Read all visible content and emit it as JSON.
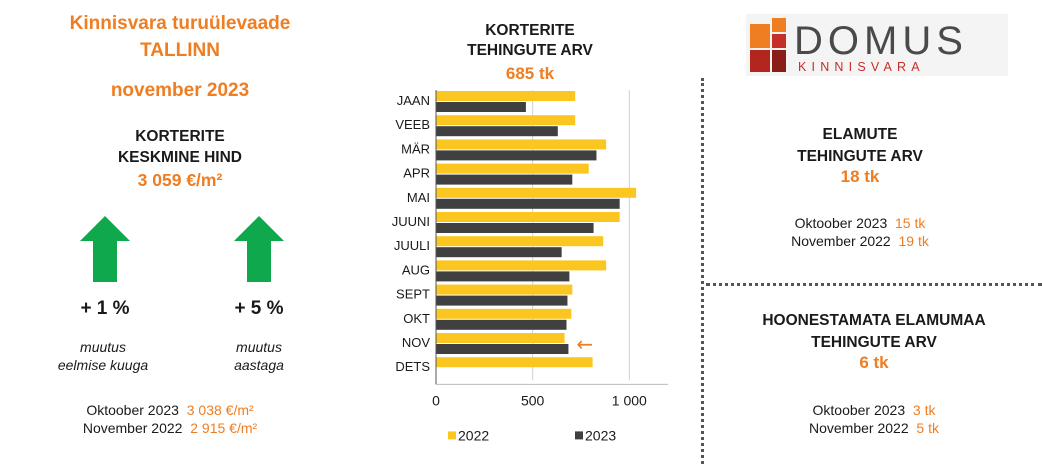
{
  "header": {
    "title_line1": "Kinnisvara turuülevaade",
    "title_line2": "TALLINN",
    "title_line3": "november 2023"
  },
  "avg_price": {
    "label_line1": "KORTERITE",
    "label_line2": "KESKMINE HIND",
    "value": "3 059 €/m²",
    "month_change": "+ 1 %",
    "month_desc_line1": "muutus",
    "month_desc_line2": "eelmise kuuga",
    "year_change": "+ 5 %",
    "year_desc_line1": "muutus",
    "year_desc_line2": "aastaga",
    "oct_label": "Oktoober 2023",
    "oct_value": "3 038 €/m²",
    "nov_label": "November 2022",
    "nov_value": "2 915 €/m²"
  },
  "apartments": {
    "title_line1": "KORTERITE",
    "title_line2": "TEHINGUTE ARV",
    "total": "685 tk"
  },
  "logo": {
    "name": "DOMUS",
    "sub": "KINNISVARA"
  },
  "houses": {
    "title_line1": "ELAMUTE",
    "title_line2": "TEHINGUTE ARV",
    "total": "18 tk",
    "oct_label": "Oktoober 2023",
    "oct_value": "15 tk",
    "nov_label": "November 2022",
    "nov_value": "19 tk"
  },
  "land": {
    "title_line1": "HOONESTAMATA ELAMUMAA",
    "title_line2": "TEHINGUTE ARV",
    "total": "6 tk",
    "oct_label": "Oktoober 2023",
    "oct_value": "3 tk",
    "nov_label": "November 2022",
    "nov_value": "5 tk"
  },
  "colors": {
    "accent": "#ef7d22",
    "bar_2022": "#fcc620",
    "bar_2023": "#404040",
    "arrow": "#10a84c"
  },
  "chart_data": {
    "type": "bar",
    "orientation": "horizontal",
    "categories": [
      "JAAN",
      "VEEB",
      "MÄR",
      "APR",
      "MAI",
      "JUUNI",
      "JUULI",
      "AUG",
      "SEPT",
      "OKT",
      "NOV",
      "DETS"
    ],
    "series": [
      {
        "name": "2022",
        "color": "#fcc620",
        "values": [
          720,
          720,
          880,
          790,
          1035,
          950,
          865,
          880,
          705,
          700,
          665,
          810
        ]
      },
      {
        "name": "2023",
        "color": "#404040",
        "values": [
          465,
          630,
          830,
          705,
          950,
          815,
          650,
          690,
          680,
          675,
          685,
          null
        ]
      }
    ],
    "xlim": [
      0,
      1200
    ],
    "xticks": [
      0,
      500,
      1000
    ],
    "xtick_labels": [
      "0",
      "500",
      "1 000"
    ],
    "grid": true,
    "legend_position": "bottom",
    "annotation": {
      "symbol": "←",
      "category": "NOV"
    }
  }
}
